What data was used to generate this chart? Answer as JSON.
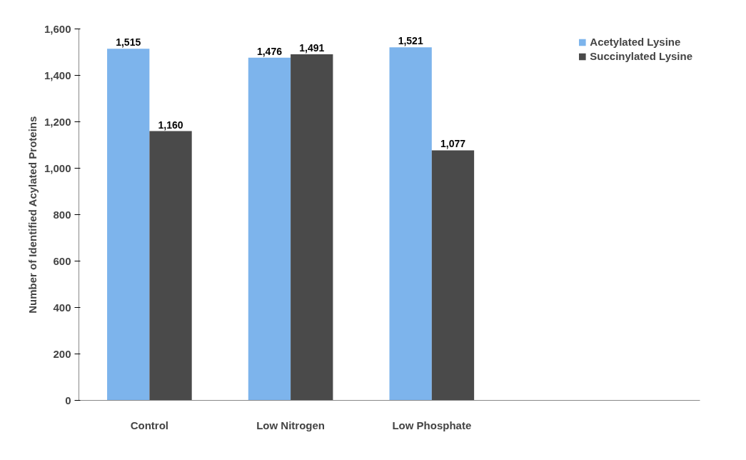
{
  "chart_data": {
    "type": "bar",
    "ylabel": "Number of Identified Acylated Proteins",
    "categories": [
      "Control",
      "Low Nitrogen",
      "Low Phosphate"
    ],
    "series": [
      {
        "name": "Acetylated Lysine",
        "color": "#7db4ec",
        "values": [
          1515,
          1476,
          1521
        ],
        "value_labels": [
          "1,515",
          "1,476",
          "1,521"
        ]
      },
      {
        "name": "Succinylated Lysine",
        "color": "#4a4a4a",
        "values": [
          1160,
          1491,
          1077
        ],
        "value_labels": [
          "1,160",
          "1,491",
          "1,077"
        ]
      }
    ],
    "ylim": [
      0,
      1600
    ],
    "yticks": [
      0,
      200,
      400,
      600,
      800,
      {
        "value": 1000,
        "label": "1,000"
      },
      {
        "value": 1200,
        "label": "1,200"
      },
      {
        "value": 1400,
        "label": "1,400"
      },
      {
        "value": 1600,
        "label": "1,600"
      }
    ],
    "grid": false,
    "legend": "right"
  }
}
